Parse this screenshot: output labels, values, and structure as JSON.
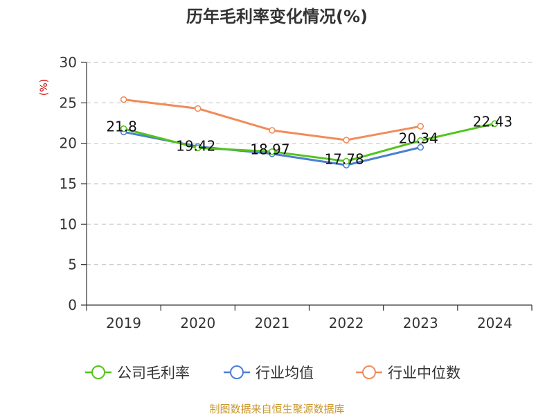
{
  "chart_data": {
    "type": "line",
    "title": "历年毛利率变化情况(%)",
    "ylabel": "(%)",
    "xlabel": "",
    "categories": [
      "2019",
      "2020",
      "2021",
      "2022",
      "2023",
      "2024"
    ],
    "ylim": [
      0,
      30
    ],
    "yticks": [
      0,
      5,
      10,
      15,
      20,
      25,
      30
    ],
    "grid": true,
    "legend_position": "bottom",
    "series": [
      {
        "name": "公司毛利率",
        "color": "#52c41a",
        "values": [
          21.8,
          19.42,
          18.97,
          17.78,
          20.34,
          22.43
        ],
        "labels": [
          "21.8",
          "19.42",
          "18.97",
          "17.78",
          "20.34",
          "22.43"
        ]
      },
      {
        "name": "行业均值",
        "color": "#4a7fd4",
        "values": [
          21.4,
          19.6,
          18.7,
          17.3,
          19.5,
          null
        ]
      },
      {
        "name": "行业中位数",
        "color": "#f08c5a",
        "values": [
          25.4,
          24.3,
          21.6,
          20.4,
          22.1,
          null
        ]
      }
    ],
    "source": "制图数据来自恒生聚源数据库"
  }
}
